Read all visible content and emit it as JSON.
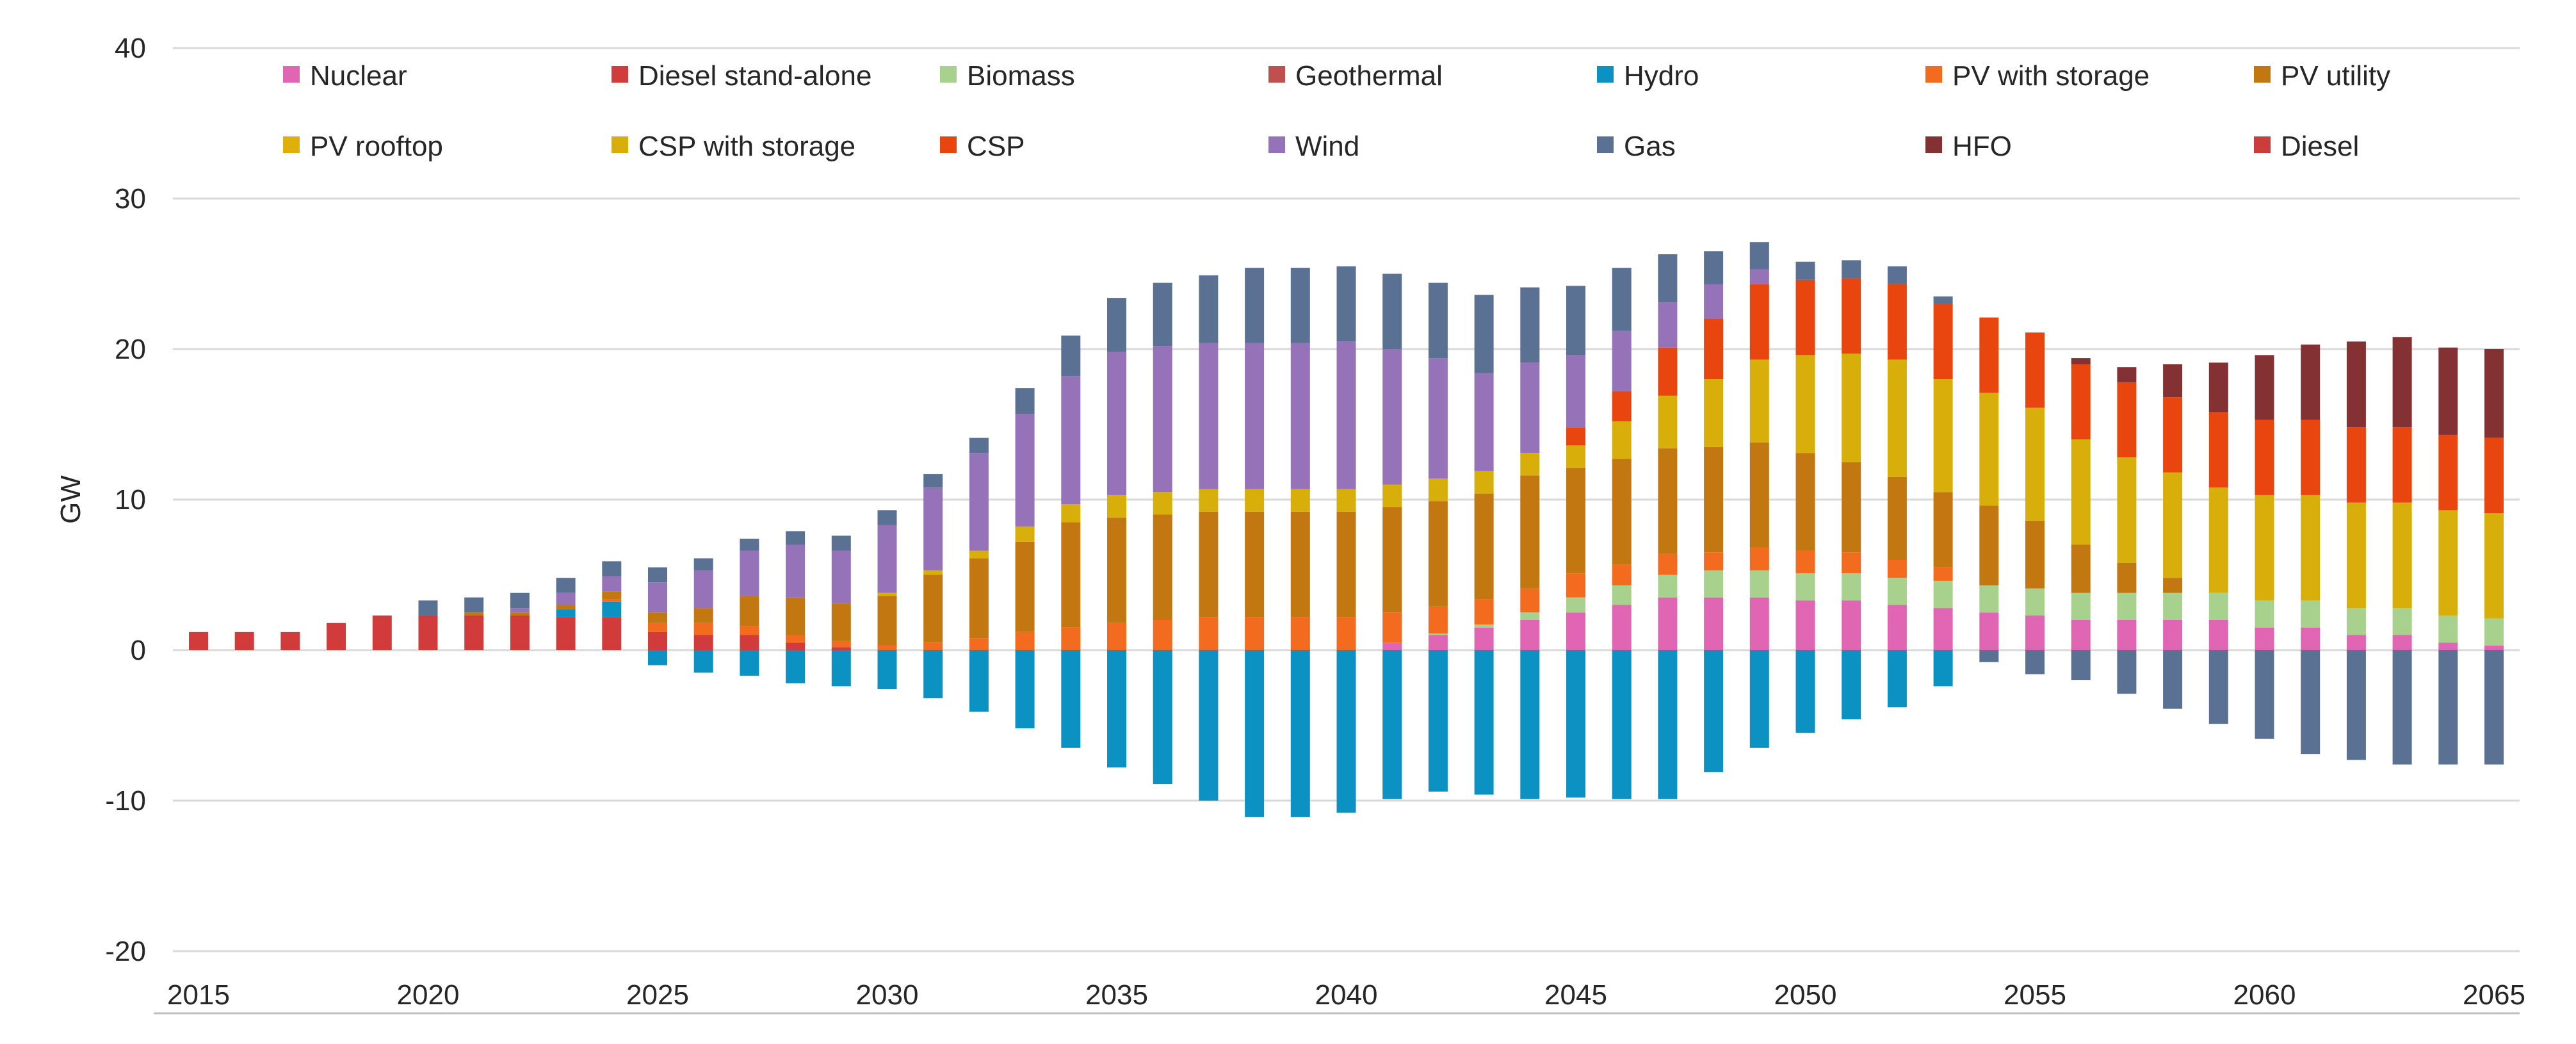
{
  "chart_data": {
    "type": "bar",
    "stacked": true,
    "title": "",
    "xlabel": "",
    "ylabel": "GW",
    "ylim": [
      -20,
      40
    ],
    "yticks": [
      -20,
      -10,
      0,
      10,
      20,
      30,
      40
    ],
    "xticks": [
      2015,
      2020,
      2025,
      2030,
      2035,
      2040,
      2045,
      2050,
      2055,
      2060,
      2065
    ],
    "grid": true,
    "legend_position": "top",
    "categories": [
      2015,
      2016,
      2017,
      2018,
      2019,
      2020,
      2021,
      2022,
      2023,
      2024,
      2025,
      2026,
      2027,
      2028,
      2029,
      2030,
      2031,
      2032,
      2033,
      2034,
      2035,
      2036,
      2037,
      2038,
      2039,
      2040,
      2041,
      2042,
      2043,
      2044,
      2045,
      2046,
      2047,
      2048,
      2049,
      2050,
      2051,
      2052,
      2053,
      2054,
      2055,
      2056,
      2057,
      2058,
      2059,
      2060,
      2061,
      2062,
      2063,
      2064,
      2065
    ],
    "series": [
      {
        "name": "Nuclear",
        "color": "#E066B3",
        "values": [
          0,
          0,
          0,
          0,
          0,
          0,
          0,
          0,
          0,
          0,
          0,
          0,
          0,
          0,
          0,
          0,
          0,
          0,
          0,
          0,
          0,
          0,
          0,
          0,
          0,
          0,
          0.5,
          1,
          1.5,
          2,
          2.5,
          3,
          3.5,
          3.5,
          3.5,
          3.3,
          3.3,
          3,
          2.8,
          2.5,
          2.3,
          2,
          2,
          2,
          2,
          1.5,
          1.5,
          1,
          1,
          0.5,
          0.3
        ]
      },
      {
        "name": "Diesel stand-alone",
        "color": "#D13B3B",
        "values": [
          1.2,
          1.2,
          1.2,
          1.8,
          2.3,
          2.3,
          2.3,
          2.3,
          2.2,
          2.2,
          1.2,
          1,
          1,
          0.5,
          0.2,
          0,
          0,
          0,
          0,
          0,
          0,
          0,
          0,
          0,
          0,
          0,
          0,
          0,
          0,
          0,
          0,
          0,
          0,
          0,
          0,
          0,
          0,
          0,
          0,
          0,
          0,
          0,
          0,
          0,
          0,
          0,
          0,
          0,
          0,
          0,
          0
        ]
      },
      {
        "name": "Biomass",
        "color": "#A9D18E",
        "values": [
          0,
          0,
          0,
          0,
          0,
          0,
          0,
          0,
          0,
          0,
          0,
          0,
          0,
          0,
          0,
          0,
          0,
          0,
          0,
          0,
          0,
          0,
          0,
          0,
          0,
          0,
          0,
          0.1,
          0.2,
          0.5,
          1,
          1.3,
          1.5,
          1.8,
          1.8,
          1.8,
          1.8,
          1.8,
          1.8,
          1.8,
          1.8,
          1.8,
          1.8,
          1.8,
          1.8,
          1.8,
          1.8,
          1.8,
          1.8,
          1.8,
          1.8
        ]
      },
      {
        "name": "Geothermal",
        "color": "#C0504D",
        "values": [
          0,
          0,
          0,
          0,
          0,
          0,
          0,
          0,
          0,
          0,
          0,
          0,
          0,
          0,
          0,
          0,
          0,
          0,
          0,
          0,
          0,
          0,
          0,
          0,
          0,
          0,
          0,
          0,
          0,
          0,
          0,
          0,
          0,
          0,
          0,
          0,
          0,
          0,
          0,
          0,
          0,
          0,
          0,
          0,
          0,
          0,
          0,
          0,
          0,
          0,
          0
        ]
      },
      {
        "name": "Hydro",
        "color": "#0B91C2",
        "values": [
          0,
          0,
          0,
          0,
          0,
          0,
          0,
          0,
          0.5,
          1,
          -1,
          -1.5,
          -1.7,
          -2.2,
          -2.4,
          -2.6,
          -3.2,
          -4.1,
          -5.2,
          -6.5,
          -7.8,
          -8.9,
          -10,
          -11.1,
          -11.1,
          -10.8,
          -9.9,
          -9.4,
          -9.6,
          -9.9,
          -9.8,
          -9.9,
          -9.9,
          -8.1,
          -6.5,
          -5.5,
          -4.6,
          -3.8,
          -2.4,
          0,
          0,
          0,
          0,
          0,
          0,
          0,
          0,
          0,
          0,
          0,
          0
        ]
      },
      {
        "name": "PV with storage",
        "color": "#F26B1F",
        "values": [
          0,
          0,
          0,
          0,
          0,
          0,
          0,
          0,
          0,
          0.2,
          0.6,
          0.8,
          0.6,
          0.5,
          0.4,
          0.3,
          0.5,
          0.8,
          1.2,
          1.5,
          1.8,
          2,
          2.2,
          2.2,
          2.2,
          2.2,
          2,
          1.8,
          1.7,
          1.6,
          1.6,
          1.4,
          1.4,
          1.2,
          1.5,
          1.5,
          1.4,
          1.2,
          0.9,
          0,
          0,
          0,
          0,
          0,
          0,
          0,
          0,
          0,
          0,
          0,
          0
        ]
      },
      {
        "name": "PV utility",
        "color": "#C27710",
        "values": [
          0,
          0,
          0,
          0,
          0,
          0,
          0.2,
          0.2,
          0.3,
          0.5,
          0.7,
          1,
          2,
          2.5,
          2.5,
          3.3,
          4.5,
          5.3,
          6,
          7,
          7,
          7,
          7,
          7,
          7,
          7,
          7,
          7,
          7,
          7.5,
          7,
          7,
          7,
          7,
          7,
          6.5,
          6,
          5.5,
          5,
          5.3,
          4.5,
          3.2,
          2,
          1,
          0,
          0,
          0,
          0,
          0,
          0,
          0
        ]
      },
      {
        "name": "PV rooftop",
        "color": "#E0B00A",
        "values": [
          0,
          0,
          0,
          0,
          0,
          0,
          0,
          0,
          0,
          0,
          0,
          0,
          0,
          0,
          0,
          0,
          0,
          0,
          0,
          0,
          0,
          0,
          0,
          0,
          0,
          0,
          0,
          0,
          0,
          0,
          0,
          0,
          0,
          0,
          0,
          0,
          0,
          0,
          0,
          0,
          0,
          0,
          0,
          0,
          0,
          0,
          0,
          0,
          0,
          0,
          0
        ]
      },
      {
        "name": "CSP with storage",
        "color": "#D8AE0B",
        "values": [
          0,
          0,
          0,
          0,
          0,
          0,
          0,
          0,
          0,
          0,
          0,
          0,
          0,
          0,
          0,
          0.2,
          0.3,
          0.5,
          1,
          1.2,
          1.5,
          1.5,
          1.5,
          1.5,
          1.5,
          1.5,
          1.5,
          1.5,
          1.5,
          1.5,
          1.5,
          2.5,
          3.5,
          4.5,
          5.5,
          6.5,
          7.2,
          7.8,
          7.5,
          7.5,
          7.5,
          7,
          7,
          7,
          7,
          7,
          7,
          7,
          7,
          7,
          7
        ]
      },
      {
        "name": "CSP",
        "color": "#E8460E",
        "values": [
          0,
          0,
          0,
          0,
          0,
          0,
          0,
          0,
          0,
          0,
          0,
          0,
          0,
          0,
          0,
          0,
          0,
          0,
          0,
          0,
          0,
          0,
          0,
          0,
          0,
          0,
          0,
          0,
          0,
          0,
          1.2,
          2,
          3.2,
          4,
          5,
          5,
          5,
          5,
          5,
          5,
          5,
          5,
          5,
          5,
          5,
          5,
          5,
          5,
          5,
          5,
          5
        ]
      },
      {
        "name": "Wind",
        "color": "#9673B9",
        "values": [
          0,
          0,
          0,
          0,
          0,
          0,
          0,
          0.3,
          0.8,
          1,
          2,
          2.5,
          3,
          3.5,
          3.5,
          4.5,
          5.5,
          6.5,
          7.5,
          8.5,
          9.5,
          9.7,
          9.7,
          9.7,
          9.7,
          9.8,
          9,
          8,
          6.5,
          6,
          4.8,
          4,
          3,
          2.3,
          1,
          0,
          0,
          0,
          0,
          0,
          0,
          0,
          0,
          0,
          0,
          0,
          0,
          0,
          0,
          0,
          0
        ]
      },
      {
        "name": "Gas",
        "color": "#5B7193",
        "values": [
          0,
          0,
          0,
          0,
          0,
          1,
          1,
          1,
          1,
          1,
          1,
          0.8,
          0.8,
          0.9,
          1,
          1,
          0.9,
          1,
          1.7,
          2.7,
          3.6,
          4.2,
          4.5,
          5,
          5,
          5,
          5,
          5,
          5.2,
          5,
          4.6,
          4.2,
          3.2,
          2.2,
          1.8,
          1.2,
          1.2,
          1.2,
          0.5,
          -0.8,
          -1.6,
          -2,
          -2.9,
          -3.9,
          -4.9,
          -5.9,
          -6.9,
          -7.3,
          -7.6,
          -7.6,
          -7.6
        ]
      },
      {
        "name": "HFO",
        "color": "#843133",
        "values": [
          0,
          0,
          0,
          0,
          0,
          0,
          0,
          0,
          0,
          0,
          0,
          0,
          0,
          0,
          0,
          0,
          0,
          0,
          0,
          0,
          0,
          0,
          0,
          0,
          0,
          0,
          0,
          0,
          0,
          0,
          0,
          0,
          0,
          0,
          0,
          0,
          0,
          0,
          0,
          0,
          0,
          0.4,
          1,
          2.2,
          3.3,
          4.3,
          5,
          5.7,
          6,
          5.8,
          5.9
        ]
      },
      {
        "name": "Diesel",
        "color": "#CB3C3C",
        "values": [
          0,
          0,
          0,
          0,
          0,
          0,
          0,
          0,
          0,
          0,
          0,
          0,
          0,
          0,
          0,
          0,
          0,
          0,
          0,
          0,
          0,
          0,
          0,
          0,
          0,
          0,
          0,
          0,
          0,
          0,
          0,
          0,
          0,
          0,
          0,
          0,
          0,
          0,
          0,
          0,
          0,
          0,
          0,
          0,
          0,
          0,
          0,
          0,
          0,
          0,
          0
        ]
      }
    ]
  }
}
